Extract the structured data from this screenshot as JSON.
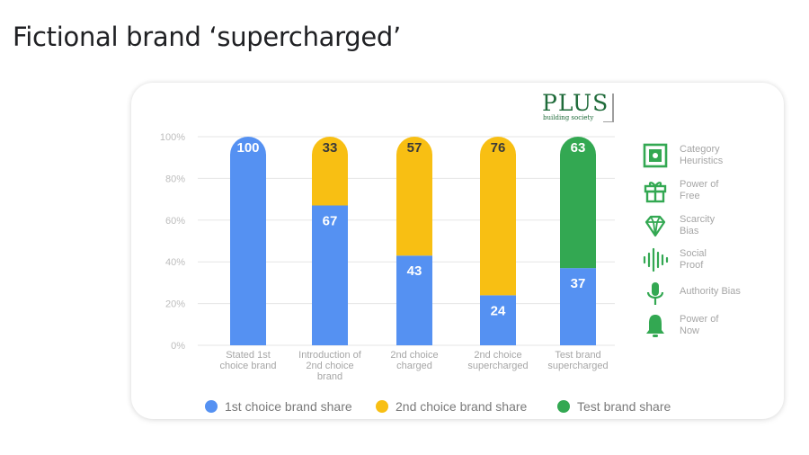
{
  "page": {
    "title": "Fictional brand ‘supercharged’"
  },
  "logo": {
    "word": "PLUS",
    "subtitle": "building society"
  },
  "colors": {
    "blue": "#5591f2",
    "yellow": "#f8bf13",
    "green": "#33a852"
  },
  "chart_data": {
    "type": "bar",
    "stacked": true,
    "categories": [
      "Stated 1st choice brand",
      "Introduction of 2nd choice brand",
      "2nd choice charged",
      "2nd choice supercharged",
      "Test brand supercharged"
    ],
    "category_lines": [
      [
        "Stated 1st",
        "choice brand"
      ],
      [
        "Introduction of",
        "2nd choice",
        "brand"
      ],
      [
        "2nd choice",
        "charged"
      ],
      [
        "2nd choice",
        "supercharged"
      ],
      [
        "Test brand",
        "supercharged"
      ]
    ],
    "series": [
      {
        "name": "1st choice brand share",
        "color": "#5591f2",
        "values": [
          100,
          67,
          43,
          24,
          37
        ]
      },
      {
        "name": "2nd choice brand share",
        "color": "#f8bf13",
        "values": [
          0,
          33,
          57,
          76,
          0
        ]
      },
      {
        "name": "Test brand share",
        "color": "#33a852",
        "values": [
          0,
          0,
          0,
          0,
          63
        ]
      }
    ],
    "y_ticks": [
      "0%",
      "20%",
      "40%",
      "60%",
      "80%",
      "100%"
    ],
    "ylim": [
      0,
      100
    ],
    "grid": true,
    "legend_position": "bottom"
  },
  "sidebar": {
    "items": [
      {
        "icon": "chip-icon",
        "lines": [
          "Category",
          "Heuristics"
        ]
      },
      {
        "icon": "gift-icon",
        "lines": [
          "Power of",
          "Free"
        ]
      },
      {
        "icon": "diamond-icon",
        "lines": [
          "Scarcity",
          "Bias"
        ]
      },
      {
        "icon": "soundwave-icon",
        "lines": [
          "Social",
          "Proof"
        ]
      },
      {
        "icon": "microphone-icon",
        "lines": [
          "Authority Bias"
        ]
      },
      {
        "icon": "bell-icon",
        "lines": [
          "Power of",
          "Now"
        ]
      }
    ]
  }
}
